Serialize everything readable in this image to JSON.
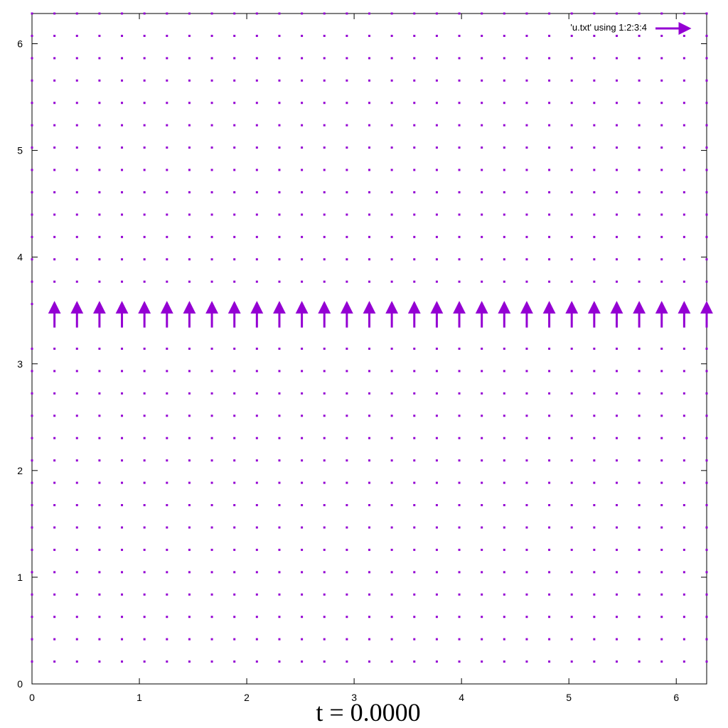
{
  "chart_data": {
    "type": "vector-field",
    "title": "t = 0.0000",
    "xlabel": "",
    "ylabel": "",
    "xlim": [
      0,
      6.2832
    ],
    "ylim": [
      0,
      6.2832
    ],
    "xticks": [
      "0",
      "1",
      "2",
      "3",
      "4",
      "5",
      "6"
    ],
    "yticks": [
      "0",
      "1",
      "2",
      "3",
      "4",
      "5",
      "6"
    ],
    "grid": false,
    "legend_position": "top-right",
    "series": [
      {
        "name": "'u.txt' using 1:2:3:4",
        "color": "#9400d3",
        "grid_x": {
          "start": 0,
          "step": 0.20944,
          "count": 31
        },
        "grid_y": {
          "start": 0.20944,
          "step": 0.20944,
          "count": 30
        },
        "background_vector": [
          0,
          0
        ],
        "active_row": {
          "y": 3.34,
          "x_start": 0.20944,
          "x_step": 0.20944,
          "count": 30,
          "u": 0,
          "v": 0.22
        }
      }
    ]
  }
}
